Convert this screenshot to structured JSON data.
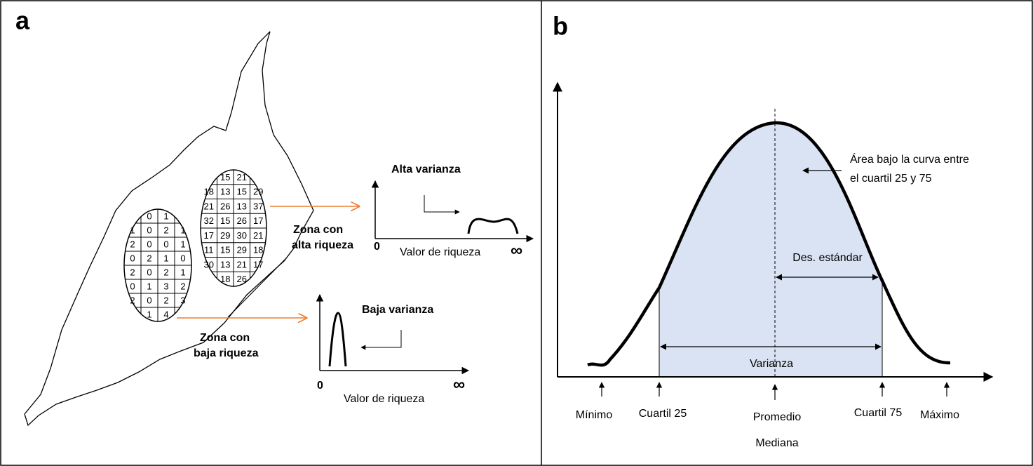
{
  "panels": {
    "a": {
      "label": "a",
      "low_zone": {
        "cells": [
          [
            "0",
            "1"
          ],
          [
            "1",
            "0",
            "2",
            "1"
          ],
          [
            "2",
            "0",
            "0",
            "1"
          ],
          [
            "0",
            "2",
            "1",
            "0"
          ],
          [
            "2",
            "0",
            "2",
            "1"
          ],
          [
            "0",
            "1",
            "3",
            "2"
          ],
          [
            "2",
            "0",
            "2",
            "3"
          ],
          [
            "1",
            "4"
          ]
        ],
        "zone_label": [
          "Zona con",
          "baja riqueza"
        ],
        "chart_title": "Baja varianza",
        "x_label": "Valor de riqueza",
        "x_start": "0",
        "x_end": "∞"
      },
      "high_zone": {
        "cells": [
          [
            "15",
            "21"
          ],
          [
            "18",
            "13",
            "15",
            "29"
          ],
          [
            "21",
            "26",
            "13",
            "37"
          ],
          [
            "32",
            "15",
            "26",
            "17"
          ],
          [
            "17",
            "29",
            "30",
            "21"
          ],
          [
            "11",
            "15",
            "29",
            "18"
          ],
          [
            "30",
            "13",
            "21",
            "17"
          ],
          [
            "18",
            "26"
          ]
        ],
        "zone_label": [
          "Zona con",
          "alta riqueza"
        ],
        "chart_title": "Alta varianza",
        "x_label": "Valor de riqueza",
        "x_start": "0",
        "x_end": "∞"
      }
    },
    "b": {
      "label": "b",
      "area_note": [
        "Área bajo la curva entre",
        "el cuartil 25 y 75"
      ],
      "std_label": "Des. estándar",
      "variance_label": "Varianza",
      "markers": [
        "Mínimo",
        "Cuartil 25",
        "Promedio",
        "Cuartil 75",
        "Máximo"
      ],
      "median_label": "Mediana"
    }
  }
}
